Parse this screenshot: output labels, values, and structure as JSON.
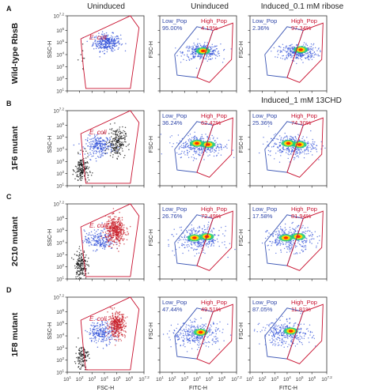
{
  "colors": {
    "ecoli_gate": "#c8102e",
    "low_gate": "#3a55b4",
    "high_gate": "#c8102e",
    "low_text": "#2f46a8",
    "high_text": "#c8102e",
    "blue_cells": "#3050d8",
    "red_cells": "#c81e28",
    "black_cells": "#111111",
    "hot_core": "#ff2a00",
    "warm_core": "#ffd800",
    "mid_core": "#20d070"
  },
  "chart_data": {
    "type": "scatter",
    "column_titles": [
      "Uninduced",
      "Uninduced",
      "Induced_0.1 mM ribose",
      "Induced_1 mM 13CHD"
    ],
    "gate_labels": {
      "ecoli": "E. coli",
      "low": "Low_Pop",
      "high": "High_Pop"
    },
    "axes": {
      "col1": {
        "xlabel": "FSC-H",
        "ylabel": "SSC-H"
      },
      "col23": {
        "xlabel": "FITC-H",
        "ylabel": "FSC-H"
      },
      "xticks": [
        "10",
        "10",
        "10",
        "10",
        "10",
        "10",
        "10"
      ],
      "xtick_exponents": [
        "1",
        "2",
        "3",
        "4",
        "5",
        "6",
        "7.2"
      ],
      "yticks": [
        "10",
        "10",
        "10",
        "10",
        "10",
        "10",
        "10"
      ],
      "ytick_exponents": [
        "1",
        "2",
        "3",
        "4",
        "5",
        "6",
        "7.2"
      ],
      "xlim_log10": [
        1,
        7.2
      ],
      "ylim_log10": [
        1,
        7.2
      ],
      "scale": "log"
    },
    "rows": [
      {
        "letter": "A",
        "label": "Wild-type RbsB",
        "col1_gates": [
          "ecoli"
        ],
        "uninduced": {
          "low_pct": "95.00%",
          "high_pct": "4.19%"
        },
        "induced": {
          "low_pct": "2.36%",
          "high_pct": "97.34%"
        }
      },
      {
        "letter": "B",
        "label": "1F6 mutant",
        "col1_gates": [
          "ecoli"
        ],
        "uninduced": {
          "low_pct": "36.24%",
          "high_pct": "62.42%"
        },
        "induced": {
          "low_pct": "25.36%",
          "high_pct": "74.30%"
        }
      },
      {
        "letter": "C",
        "label": "2C10 mutant",
        "col1_gates": [
          "ecoli"
        ],
        "uninduced": {
          "low_pct": "26.76%",
          "high_pct": "72.49%"
        },
        "induced": {
          "low_pct": "17.58%",
          "high_pct": "81.94%"
        }
      },
      {
        "letter": "D",
        "label": "1F8 mutant",
        "col1_gates": [
          "ecoli"
        ],
        "uninduced": {
          "low_pct": "47.44%",
          "high_pct": "49.51%"
        },
        "induced": {
          "low_pct": "87.05%",
          "high_pct": "11.81%"
        }
      }
    ],
    "populations": {
      "col1": [
        {
          "row": 0,
          "color": "blue_cells",
          "cx": 4.2,
          "cy": 5.0,
          "sx": 0.55,
          "sy": 0.35,
          "n": 300
        },
        {
          "row": 0,
          "color": "black_cells",
          "cx": 2.2,
          "cy": 3.7,
          "sx": 0.2,
          "sy": 0.5,
          "n": 10
        },
        {
          "row": 1,
          "color": "blue_cells",
          "cx": 3.6,
          "cy": 4.3,
          "sx": 0.55,
          "sy": 0.4,
          "n": 230
        },
        {
          "row": 1,
          "color": "black_cells",
          "cx": 2.2,
          "cy": 2.3,
          "sx": 0.28,
          "sy": 0.6,
          "n": 180
        },
        {
          "row": 1,
          "color": "black_cells",
          "cx": 5.0,
          "cy": 4.6,
          "sx": 0.35,
          "sy": 0.6,
          "n": 200
        },
        {
          "row": 2,
          "color": "blue_cells",
          "cx": 3.6,
          "cy": 4.2,
          "sx": 0.6,
          "sy": 0.4,
          "n": 200
        },
        {
          "row": 2,
          "color": "black_cells",
          "cx": 2.1,
          "cy": 2.2,
          "sx": 0.25,
          "sy": 0.6,
          "n": 180
        },
        {
          "row": 2,
          "color": "red_cells",
          "cx": 4.9,
          "cy": 5.0,
          "sx": 0.4,
          "sy": 0.55,
          "n": 420
        },
        {
          "row": 3,
          "color": "blue_cells",
          "cx": 3.8,
          "cy": 4.3,
          "sx": 0.55,
          "sy": 0.45,
          "n": 220
        },
        {
          "row": 3,
          "color": "black_cells",
          "cx": 2.2,
          "cy": 2.3,
          "sx": 0.25,
          "sy": 0.5,
          "n": 120
        },
        {
          "row": 3,
          "color": "red_cells",
          "cx": 5.0,
          "cy": 4.9,
          "sx": 0.35,
          "sy": 0.5,
          "n": 360
        }
      ],
      "uninduced": [
        {
          "row": 0,
          "cx": 4.4,
          "cy": 4.2,
          "sx": 0.75,
          "sy": 0.33,
          "n": 320,
          "core": [
            4.5,
            4.3
          ]
        },
        {
          "row": 1,
          "cx": 4.3,
          "cy": 4.3,
          "sx": 0.95,
          "sy": 0.45,
          "n": 340,
          "core": [
            4.9,
            4.4
          ],
          "core2": [
            4.0,
            4.5
          ]
        },
        {
          "row": 2,
          "cx": 4.2,
          "cy": 4.3,
          "sx": 0.9,
          "sy": 0.5,
          "n": 340,
          "core": [
            4.8,
            4.5
          ],
          "core2": [
            3.8,
            4.4
          ]
        },
        {
          "row": 3,
          "cx": 4.0,
          "cy": 4.1,
          "sx": 1.0,
          "sy": 0.5,
          "n": 320,
          "core": [
            4.3,
            4.3
          ]
        }
      ],
      "induced": [
        {
          "row": 0,
          "cx": 4.9,
          "cy": 4.2,
          "sx": 0.75,
          "sy": 0.33,
          "n": 320,
          "core": [
            5.1,
            4.4
          ]
        },
        {
          "row": 1,
          "cx": 4.4,
          "cy": 4.3,
          "sx": 0.95,
          "sy": 0.45,
          "n": 340,
          "core": [
            5.0,
            4.4
          ],
          "core2": [
            4.1,
            4.5
          ]
        },
        {
          "row": 2,
          "cx": 4.3,
          "cy": 4.3,
          "sx": 0.9,
          "sy": 0.5,
          "n": 340,
          "core": [
            4.9,
            4.5
          ],
          "core2": [
            3.9,
            4.4
          ]
        },
        {
          "row": 3,
          "cx": 3.9,
          "cy": 4.2,
          "sx": 1.0,
          "sy": 0.5,
          "n": 320,
          "core": [
            4.3,
            4.4
          ]
        }
      ]
    }
  }
}
